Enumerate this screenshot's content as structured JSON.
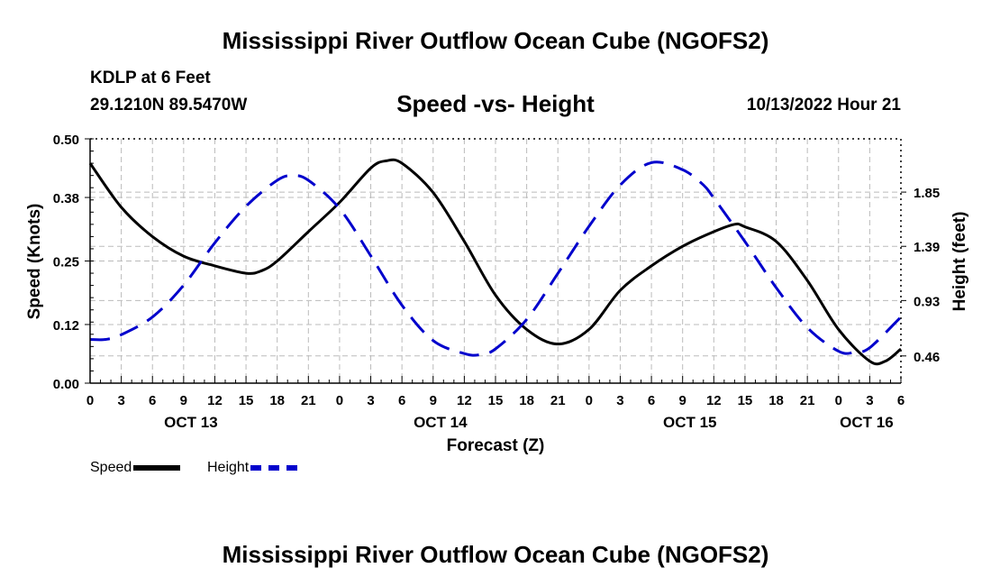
{
  "header": {
    "title": "Mississippi River Outflow Ocean Cube (NGOFS2)",
    "station": "KDLP at 6 Feet",
    "coords": "29.1210N  89.5470W",
    "chart_title": "Speed -vs- Height",
    "run_time": "10/13/2022 Hour 21"
  },
  "footer": {
    "title": "Mississippi River Outflow Ocean Cube (NGOFS2)"
  },
  "legend": {
    "speed_label": "Speed",
    "height_label": "Height"
  },
  "colors": {
    "speed": "#000000",
    "height": "#0000cc",
    "grid": "#bbbbbb"
  },
  "chart_data": {
    "type": "line",
    "title": "Speed -vs- Height",
    "xlabel": "Forecast (Z)",
    "ylabel": "Speed (Knots)",
    "y2label": "Height (feet)",
    "xlim": [
      0,
      78
    ],
    "ylim": [
      0,
      0.5
    ],
    "y2lim": [
      0.229,
      2.302
    ],
    "yticks": [
      "0.00",
      "0.12",
      "0.25",
      "0.38",
      "0.50"
    ],
    "y2ticks": [
      "0.46",
      "0.93",
      "1.39",
      "1.85"
    ],
    "xtick_labels": [
      "0",
      "3",
      "6",
      "9",
      "12",
      "15",
      "18",
      "21",
      "0",
      "3",
      "6",
      "9",
      "12",
      "15",
      "18",
      "21",
      "0",
      "3",
      "6",
      "9",
      "12",
      "15",
      "18",
      "21",
      "0",
      "3",
      "6"
    ],
    "day_labels": [
      {
        "label": "OCT 13",
        "x": 9.7
      },
      {
        "label": "OCT 14",
        "x": 33.7
      },
      {
        "label": "OCT 15",
        "x": 57.7
      },
      {
        "label": "OCT 16",
        "x": 74.7
      }
    ],
    "series": [
      {
        "name": "Speed",
        "axis": "left",
        "style": "solid",
        "x": [
          0,
          3,
          6,
          9,
          12,
          15,
          16.5,
          18,
          21,
          24,
          27,
          28.5,
          30,
          33,
          36,
          39,
          42,
          45,
          48,
          51,
          54,
          57,
          60,
          62,
          63,
          66,
          69,
          72,
          75,
          76.5,
          78
        ],
        "values": [
          0.45,
          0.36,
          0.3,
          0.26,
          0.24,
          0.225,
          0.23,
          0.25,
          0.31,
          0.37,
          0.44,
          0.455,
          0.45,
          0.39,
          0.29,
          0.18,
          0.11,
          0.08,
          0.11,
          0.19,
          0.24,
          0.28,
          0.31,
          0.325,
          0.32,
          0.29,
          0.21,
          0.11,
          0.045,
          0.045,
          0.07
        ]
      },
      {
        "name": "Height",
        "axis": "right",
        "style": "dashed",
        "x": [
          0,
          1.5,
          3,
          6,
          9,
          12,
          15,
          18,
          19.5,
          21,
          24,
          27,
          30,
          33,
          36,
          37.5,
          39,
          42,
          45,
          48,
          51,
          54,
          57,
          59,
          60,
          63,
          66,
          69,
          72,
          73.5,
          75,
          78
        ],
        "values": [
          0.6,
          0.6,
          0.64,
          0.79,
          1.06,
          1.42,
          1.73,
          1.95,
          1.99,
          1.95,
          1.71,
          1.31,
          0.89,
          0.59,
          0.48,
          0.47,
          0.52,
          0.77,
          1.16,
          1.56,
          1.91,
          2.1,
          2.04,
          1.91,
          1.8,
          1.43,
          1.04,
          0.7,
          0.5,
          0.49,
          0.53,
          0.79
        ]
      }
    ]
  }
}
